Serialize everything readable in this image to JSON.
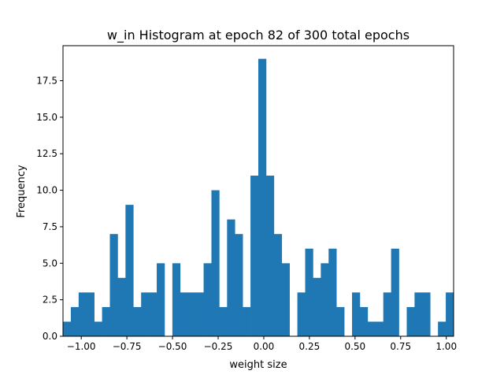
{
  "colors": {
    "bar": "#1f77b4",
    "axes": "#000000",
    "background": "#ffffff"
  },
  "chart_data": {
    "type": "bar",
    "title": "w_in Histogram at epoch 82 of 300 total epochs",
    "xlabel": "weight size",
    "ylabel": "Frequency",
    "xlim": [
      -1.1,
      1.04
    ],
    "ylim": [
      0,
      19.9
    ],
    "grid": false,
    "legend": "none",
    "bin_width": 0.0428,
    "bin_starts": [
      -1.1,
      -1.0572,
      -1.0144,
      -0.9716,
      -0.9288,
      -0.886,
      -0.8432,
      -0.8004,
      -0.7576,
      -0.7148,
      -0.672,
      -0.6292,
      -0.5864,
      -0.5436,
      -0.5008,
      -0.458,
      -0.4152,
      -0.3724,
      -0.3296,
      -0.2868,
      -0.244,
      -0.2012,
      -0.1584,
      -0.1156,
      -0.0728,
      -0.03,
      0.0128,
      0.0556,
      0.0984,
      0.1412,
      0.184,
      0.2268,
      0.2696,
      0.3124,
      0.3552,
      0.398,
      0.4408,
      0.4836,
      0.5264,
      0.5692,
      0.612,
      0.6548,
      0.6976,
      0.7404,
      0.7832,
      0.826,
      0.8688,
      0.9116,
      0.9544,
      0.9972
    ],
    "values": [
      1,
      2,
      3,
      3,
      1,
      2,
      7,
      4,
      9,
      2,
      3,
      3,
      5,
      0,
      5,
      3,
      3,
      3,
      5,
      10,
      2,
      8,
      7,
      2,
      11,
      19,
      11,
      7,
      5,
      0,
      3,
      6,
      4,
      5,
      6,
      2,
      0,
      3,
      2,
      1,
      1,
      3,
      6,
      0,
      2,
      3,
      3,
      0,
      1,
      3
    ],
    "x_ticks": [
      -1.0,
      -0.75,
      -0.5,
      -0.25,
      0.0,
      0.25,
      0.5,
      0.75,
      1.0
    ],
    "x_tick_labels": [
      "−1.00",
      "−0.75",
      "−0.50",
      "−0.25",
      "0.00",
      "0.25",
      "0.50",
      "0.75",
      "1.00"
    ],
    "y_ticks": [
      0,
      2.5,
      5,
      7.5,
      10,
      12.5,
      15,
      17.5
    ],
    "y_tick_labels": [
      "0.0",
      "2.5",
      "5.0",
      "7.5",
      "10.0",
      "12.5",
      "15.0",
      "17.5"
    ]
  }
}
